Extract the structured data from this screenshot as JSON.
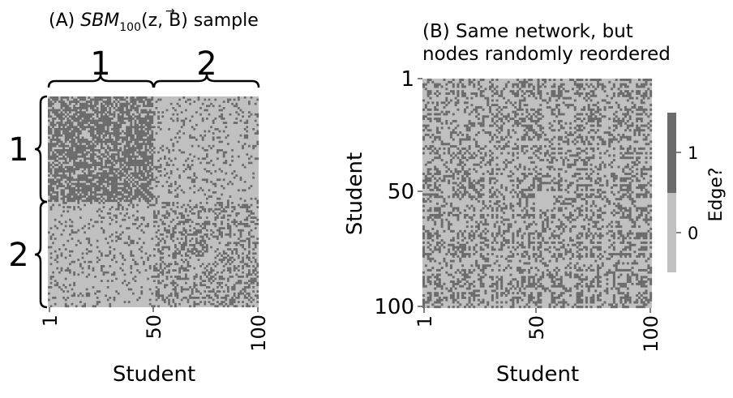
{
  "colors": {
    "edge": "#6b6b6b",
    "no_edge": "#c0c0c0",
    "text": "#000000"
  },
  "chart_data": [
    {
      "type": "heatmap",
      "panel": "A",
      "title_prefix": "(A) ",
      "title_sbm": "SBM",
      "title_sub": "100",
      "title_args": "(z, B)",
      "title_vec": "→",
      "title_suffix": " sample",
      "xlabel": "Student",
      "ylabel": "",
      "xticks": [
        "1",
        "50",
        "100"
      ],
      "yticks": [],
      "grid": false,
      "n_nodes": 100,
      "communities": [
        {
          "label": "1",
          "start": 1,
          "end": 50
        },
        {
          "label": "2",
          "start": 51,
          "end": 100
        }
      ],
      "block_probabilities": [
        [
          0.7,
          0.15
        ],
        [
          0.15,
          0.35
        ]
      ]
    },
    {
      "type": "heatmap",
      "panel": "B",
      "title_line1": "(B) Same network, but",
      "title_line2": "nodes randomly reordered",
      "xlabel": "Student",
      "ylabel": "Student",
      "xticks": [
        "1",
        "50",
        "100"
      ],
      "yticks": [
        "1",
        "50",
        "100"
      ],
      "grid": false,
      "n_nodes": 100,
      "colorbar": {
        "label": "Edge?",
        "ticks": [
          "1",
          "0"
        ],
        "values": [
          1,
          0
        ],
        "levels": [
          {
            "value": 1,
            "color": "#6b6b6b"
          },
          {
            "value": 0,
            "color": "#c0c0c0"
          }
        ]
      }
    }
  ]
}
